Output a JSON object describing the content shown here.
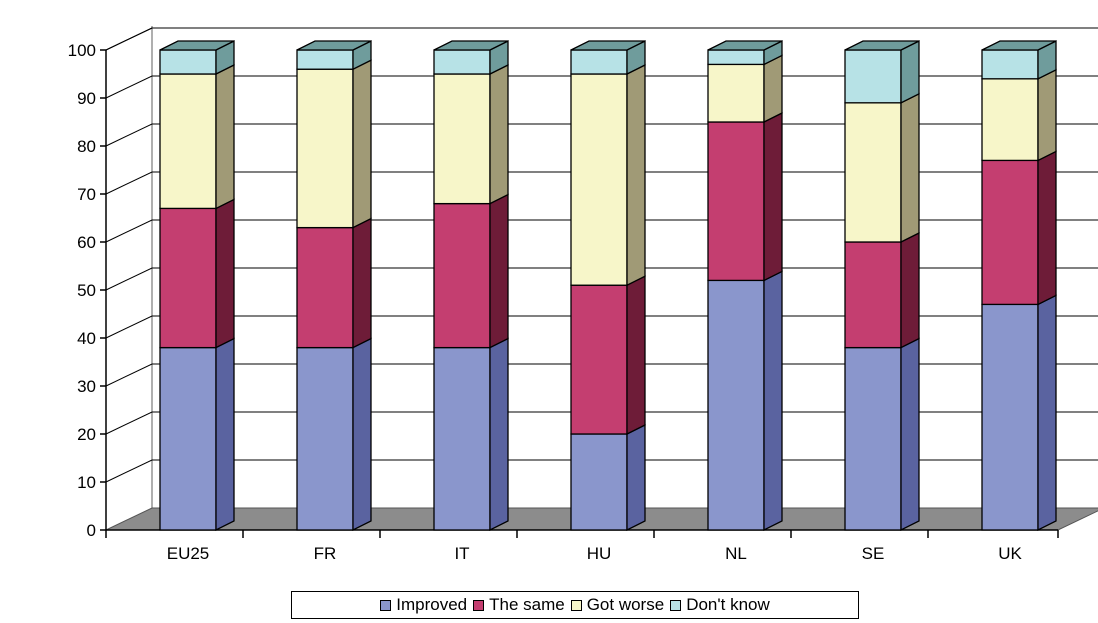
{
  "chart_data": {
    "type": "bar",
    "stacked": true,
    "three_d": true,
    "title": "",
    "xlabel": "",
    "ylabel": "",
    "ylim": [
      0,
      100
    ],
    "yticks": [
      0,
      10,
      20,
      30,
      40,
      50,
      60,
      70,
      80,
      90,
      100
    ],
    "grid": true,
    "legend_position": "bottom",
    "categories": [
      "EU25",
      "FR",
      "IT",
      "HU",
      "NL",
      "SE",
      "UK"
    ],
    "series": [
      {
        "name": "Improved",
        "color": "#8a96cc",
        "side_color": "#5a63a0",
        "values": [
          38,
          38,
          38,
          20,
          52,
          38,
          47
        ]
      },
      {
        "name": "The same",
        "color": "#c43e70",
        "side_color": "#6e1c38",
        "values": [
          29,
          25,
          30,
          31,
          33,
          22,
          30
        ]
      },
      {
        "name": "Got worse",
        "color": "#f7f6c9",
        "side_color": "#a09a76",
        "values": [
          28,
          33,
          27,
          44,
          12,
          29,
          17
        ]
      },
      {
        "name": "Don't know",
        "color": "#b7e2e6",
        "side_color": "#6f9c9c",
        "values": [
          5,
          4,
          5,
          5,
          3,
          11,
          6
        ]
      }
    ]
  }
}
